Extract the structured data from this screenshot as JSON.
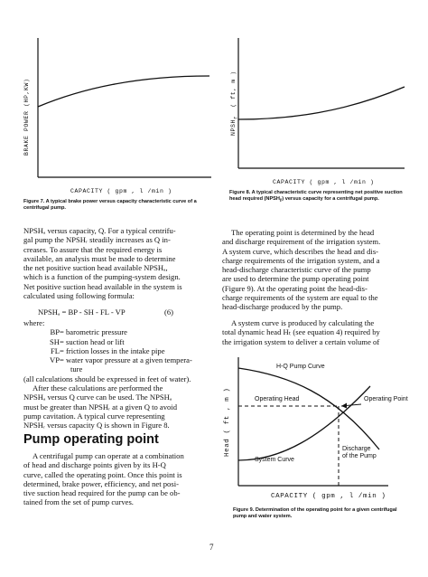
{
  "figure7": {
    "ylabel": "BRAKE POWER (HP,KW)",
    "xlabel": "CAPACITY ( gpm , l /min )",
    "caption": "Figure 7. A typical brake power versus capacity characteristic curve of a centrifugal pump."
  },
  "figure8": {
    "ylabel": "NPSH",
    "ylabel_sub": "r",
    "ylabel_unit": "( ft, m )",
    "xlabel": "CAPACITY ( gpm , l /min )",
    "caption_prefix": "Figure 8. A typical characteristic curve representing net positive suction head required (NPSH",
    "caption_sub": "r",
    "caption_suffix": ") versus capacity for a centrifugal pump."
  },
  "figure9": {
    "ylabel": "Head ( ft , m )",
    "xlabel": "CAPACITY ( gpm , l /min )",
    "hq_label": "H-Q Pump Curve",
    "operating_head_label": "Operating Head",
    "operating_point_label": "Operating Point",
    "system_curve_label": "System Curve",
    "discharge_label_1": "Discharge",
    "discharge_label_2": "of the Pump",
    "caption": "Figure 9. Determination of the operating point for a given centrifugal pump and water system."
  },
  "left_column": {
    "intro_lines": [
      "NPSHₐ versus capacity, Q.  For a typical centrifu-",
      "gal pump the NPSHᵣ steadily increases as Q in-",
      "creases. To assure that the required energy is",
      "available, an analysis must be made to determine",
      "the net positive suction head available NPSHₐ,",
      "which is a function of the pumping-system design.",
      "Net positive suction head available in the system is",
      "calculated using following formula:"
    ],
    "equation": "NPSHₐ = BP - SH - FL - VP",
    "equation_number": "(6)",
    "where": "where:",
    "defs": [
      {
        "term": "BP",
        "desc": "= barometric pressure"
      },
      {
        "term": "SH",
        "desc": "= suction head or lift"
      },
      {
        "term": "FL",
        "desc": "= friction losses in the intake pipe"
      },
      {
        "term": "VP",
        "desc": "= water vapor pressure at a given tempera-"
      }
    ],
    "def_cont": "ture",
    "units_note": "(all calculations should be expressed in feet of water).",
    "after_lines": [
      "After these calculations are performed the",
      "NPSHₐ versus Q curve can be used.  The NPSHₐ",
      "must be greater than NPSHᵣ at a given Q to avoid",
      "pump cavitation.  A typical curve representing",
      "NPSHᵣ versus capacity Q is shown in Figure 8."
    ],
    "heading": "Pump operating point",
    "op_lines": [
      "A centrifugal pump can operate at a combination",
      "of head and discharge points given by its H-Q",
      "curve, called the operating point.  Once this point is",
      "determined, brake power, efficiency, and net posi-",
      "tive suction head required for the pump can be ob-",
      "tained from the set of pump curves."
    ]
  },
  "right_column": {
    "para1": [
      "The operating point is determined by the head",
      "and discharge requirement of the irrigation system.",
      "A system curve, which describes the head and dis-",
      "charge requirements of the irrigation system, and a",
      "head-discharge characteristic curve of the pump",
      "are used to determine the pump operating point",
      "(Figure 9). At the operating point the head-dis-",
      "charge requirements of the system are equal to the",
      "head-discharge produced by the pump."
    ],
    "para2": [
      "A system curve is produced by calculating the",
      "total dynamic head Hₜ (see equation 4) required by",
      "the irrigation system to deliver a certain volume of"
    ]
  },
  "page_number": "7"
}
